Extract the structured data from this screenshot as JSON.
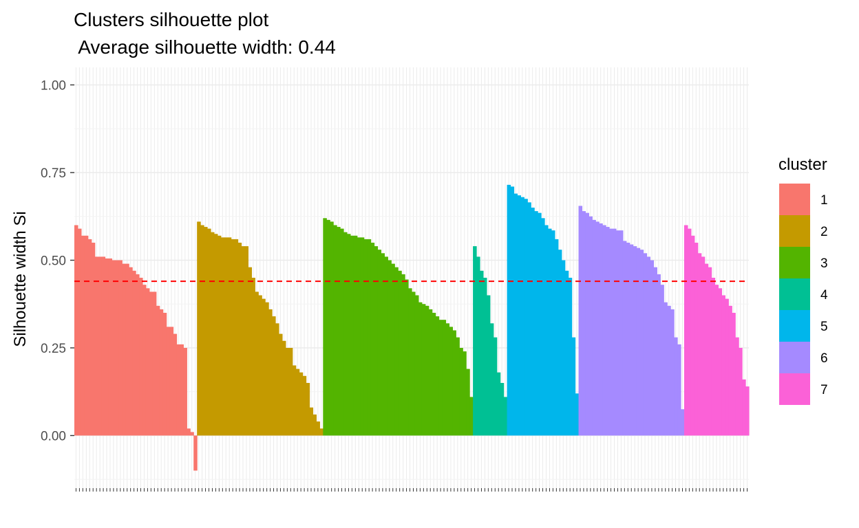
{
  "chart_data": {
    "type": "bar",
    "title": "Clusters silhouette plot",
    "subtitle": " Average silhouette width: 0.44",
    "xlabel": "",
    "ylabel": "Silhouette width Si",
    "ylim": [
      -0.15,
      1.05
    ],
    "yticks": [
      "0.00",
      "0.25",
      "0.50",
      "0.75",
      "1.00"
    ],
    "average_line": 0.44,
    "grid": true,
    "legend": {
      "title": "cluster",
      "placement": "right"
    },
    "series": [
      {
        "name": "1",
        "color": "#F8766D",
        "values": [
          0.6,
          0.59,
          0.57,
          0.57,
          0.56,
          0.55,
          0.51,
          0.51,
          0.51,
          0.505,
          0.505,
          0.5,
          0.5,
          0.5,
          0.49,
          0.49,
          0.48,
          0.47,
          0.46,
          0.45,
          0.43,
          0.42,
          0.41,
          0.41,
          0.37,
          0.36,
          0.35,
          0.31,
          0.31,
          0.29,
          0.26,
          0.26,
          0.25,
          0.02,
          0.01,
          -0.1
        ]
      },
      {
        "name": "2",
        "color": "#C49A00",
        "values": [
          0.61,
          0.6,
          0.595,
          0.59,
          0.58,
          0.575,
          0.57,
          0.565,
          0.565,
          0.565,
          0.56,
          0.56,
          0.55,
          0.54,
          0.54,
          0.48,
          0.45,
          0.41,
          0.4,
          0.39,
          0.38,
          0.36,
          0.34,
          0.32,
          0.29,
          0.27,
          0.25,
          0.25,
          0.2,
          0.19,
          0.18,
          0.17,
          0.15,
          0.08,
          0.06,
          0.04,
          0.02
        ]
      },
      {
        "name": "3",
        "color": "#53B400",
        "values": [
          0.62,
          0.615,
          0.61,
          0.6,
          0.595,
          0.59,
          0.58,
          0.575,
          0.57,
          0.57,
          0.565,
          0.565,
          0.56,
          0.56,
          0.55,
          0.54,
          0.53,
          0.52,
          0.51,
          0.5,
          0.49,
          0.48,
          0.47,
          0.46,
          0.445,
          0.42,
          0.41,
          0.4,
          0.38,
          0.375,
          0.37,
          0.36,
          0.35,
          0.34,
          0.33,
          0.33,
          0.32,
          0.31,
          0.3,
          0.28,
          0.25,
          0.24,
          0.19,
          0.11
        ]
      },
      {
        "name": "4",
        "color": "#00C094",
        "values": [
          0.54,
          0.51,
          0.47,
          0.45,
          0.4,
          0.32,
          0.28,
          0.18,
          0.15,
          0.11
        ]
      },
      {
        "name": "5",
        "color": "#00B6EB",
        "values": [
          0.715,
          0.71,
          0.69,
          0.685,
          0.68,
          0.675,
          0.665,
          0.65,
          0.64,
          0.635,
          0.62,
          0.6,
          0.59,
          0.585,
          0.56,
          0.53,
          0.5,
          0.47,
          0.45,
          0.28,
          0.12
        ]
      },
      {
        "name": "6",
        "color": "#A58AFF",
        "values": [
          0.655,
          0.64,
          0.635,
          0.625,
          0.615,
          0.61,
          0.605,
          0.6,
          0.595,
          0.59,
          0.59,
          0.585,
          0.585,
          0.555,
          0.55,
          0.545,
          0.54,
          0.535,
          0.53,
          0.52,
          0.51,
          0.5,
          0.48,
          0.46,
          0.43,
          0.38,
          0.37,
          0.36,
          0.28,
          0.26,
          0.075
        ]
      },
      {
        "name": "7",
        "color": "#FB61D7",
        "values": [
          0.6,
          0.59,
          0.57,
          0.55,
          0.52,
          0.51,
          0.49,
          0.48,
          0.45,
          0.43,
          0.42,
          0.4,
          0.39,
          0.37,
          0.35,
          0.28,
          0.25,
          0.16,
          0.14
        ]
      }
    ]
  }
}
